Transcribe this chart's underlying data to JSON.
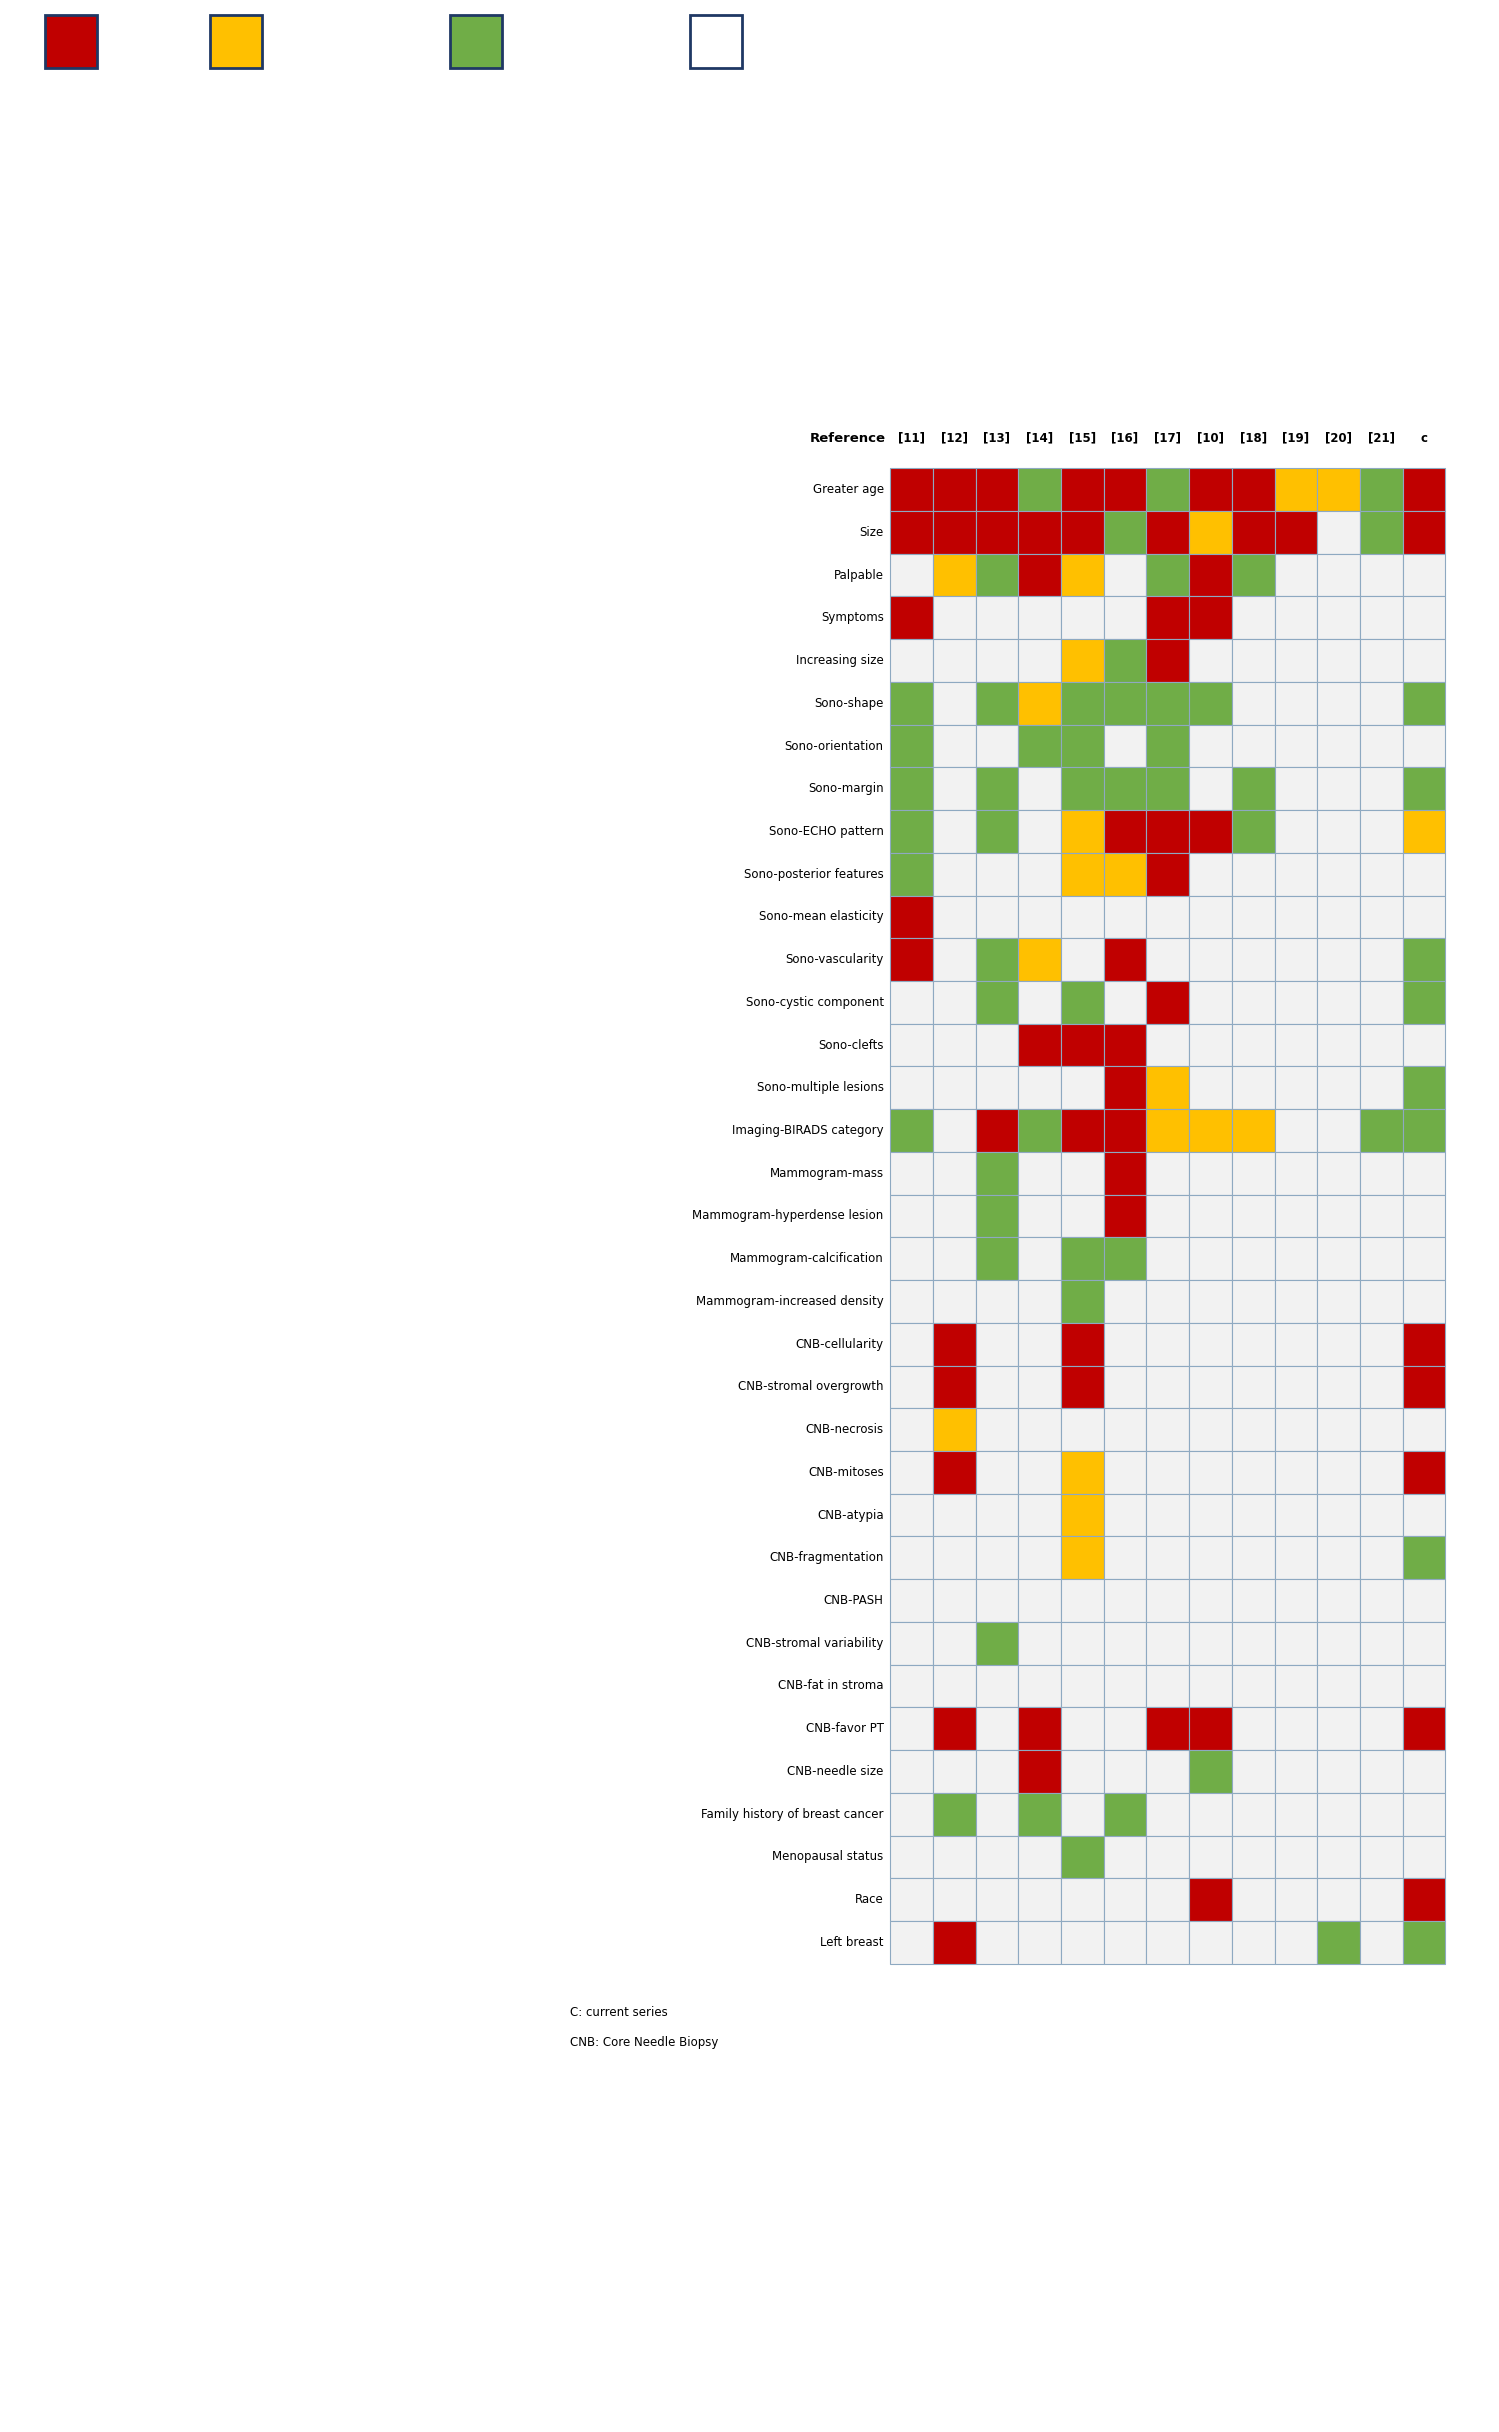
{
  "columns": [
    "[11]",
    "[12]",
    "[13]",
    "[14]",
    "[15]",
    "[16]",
    "[17]",
    "[10]",
    "[18]",
    "[19]",
    "[20]",
    "[21]",
    "c"
  ],
  "rows": [
    "Greater age",
    "Size",
    "Palpable",
    "Symptoms",
    "Increasing size",
    "Sono-shape",
    "Sono-orientation",
    "Sono-margin",
    "Sono-ECHO pattern",
    "Sono-posterior features",
    "Sono-mean elasticity",
    "Sono-vascularity",
    "Sono-cystic component",
    "Sono-clefts",
    "Sono-multiple lesions",
    "Imaging-BIRADS category",
    "Mammogram-mass",
    "Mammogram-hyperdense lesion",
    "Mammogram-calcification",
    "Mammogram-increased density",
    "CNB-cellularity",
    "CNB-stromal overgrowth",
    "CNB-necrosis",
    "CNB-mitoses",
    "CNB-atypia",
    "CNB-fragmentation",
    "CNB-PASH",
    "CNB-stromal variability",
    "CNB-fat in stroma",
    "CNB-favor PT",
    "CNB-needle size",
    "Family history of breast cancer",
    "Menopausal status",
    "Race",
    "Left breast"
  ],
  "grid": {
    "Greater age": [
      "R",
      "R",
      "R",
      "G",
      "R",
      "R",
      "G",
      "R",
      "R",
      "Y",
      "Y",
      "G",
      "R"
    ],
    "Size": [
      "R",
      "R",
      "R",
      "R",
      "R",
      "G",
      "R",
      "Y",
      "R",
      "R",
      "",
      "G",
      "R"
    ],
    "Palpable": [
      "",
      "Y",
      "G",
      "R",
      "Y",
      "",
      "G",
      "R",
      "G",
      "",
      "",
      "",
      ""
    ],
    "Symptoms": [
      "R",
      "",
      "",
      "",
      "",
      "",
      "R",
      "R",
      "",
      "",
      "",
      "",
      ""
    ],
    "Increasing size": [
      "",
      "",
      "",
      "",
      "Y",
      "G",
      "R",
      "",
      "",
      "",
      "",
      "",
      ""
    ],
    "Sono-shape": [
      "G",
      "",
      "G",
      "Y",
      "G",
      "G",
      "G",
      "G",
      "",
      "",
      "",
      "",
      "G"
    ],
    "Sono-orientation": [
      "G",
      "",
      "",
      "G",
      "G",
      "",
      "G",
      "",
      "",
      "",
      "",
      "",
      ""
    ],
    "Sono-margin": [
      "G",
      "",
      "G",
      "",
      "G",
      "G",
      "G",
      "",
      "G",
      "",
      "",
      "",
      "G"
    ],
    "Sono-ECHO pattern": [
      "G",
      "",
      "G",
      "",
      "Y",
      "R",
      "R",
      "R",
      "G",
      "",
      "",
      "",
      "Y"
    ],
    "Sono-posterior features": [
      "G",
      "",
      "",
      "",
      "Y",
      "Y",
      "R",
      "",
      "",
      "",
      "",
      "",
      ""
    ],
    "Sono-mean elasticity": [
      "R",
      "",
      "",
      "",
      "",
      "",
      "",
      "",
      "",
      "",
      "",
      "",
      ""
    ],
    "Sono-vascularity": [
      "R",
      "",
      "G",
      "Y",
      "",
      "R",
      "",
      "",
      "",
      "",
      "",
      "",
      "G"
    ],
    "Sono-cystic component": [
      "",
      "",
      "G",
      "",
      "G",
      "",
      "R",
      "",
      "",
      "",
      "",
      "",
      "G"
    ],
    "Sono-clefts": [
      "",
      "",
      "",
      "R",
      "R",
      "R",
      "",
      "",
      "",
      "",
      "",
      "",
      ""
    ],
    "Sono-multiple lesions": [
      "",
      "",
      "",
      "",
      "",
      "R",
      "Y",
      "",
      "",
      "",
      "",
      "",
      "G"
    ],
    "Imaging-BIRADS category": [
      "G",
      "",
      "R",
      "G",
      "R",
      "R",
      "Y",
      "Y",
      "Y",
      "",
      "",
      "G",
      "G"
    ],
    "Mammogram-mass": [
      "",
      "",
      "G",
      "",
      "",
      "R",
      "",
      "",
      "",
      "",
      "",
      "",
      ""
    ],
    "Mammogram-hyperdense lesion": [
      "",
      "",
      "G",
      "",
      "",
      "R",
      "",
      "",
      "",
      "",
      "",
      "",
      ""
    ],
    "Mammogram-calcification": [
      "",
      "",
      "G",
      "",
      "G",
      "G",
      "",
      "",
      "",
      "",
      "",
      "",
      ""
    ],
    "Mammogram-increased density": [
      "",
      "",
      "",
      "",
      "G",
      "",
      "",
      "",
      "",
      "",
      "",
      "",
      ""
    ],
    "CNB-cellularity": [
      "",
      "R",
      "",
      "",
      "R",
      "",
      "",
      "",
      "",
      "",
      "",
      "",
      "R"
    ],
    "CNB-stromal overgrowth": [
      "",
      "R",
      "",
      "",
      "R",
      "",
      "",
      "",
      "",
      "",
      "",
      "",
      "R"
    ],
    "CNB-necrosis": [
      "",
      "Y",
      "",
      "",
      "",
      "",
      "",
      "",
      "",
      "",
      "",
      "",
      ""
    ],
    "CNB-mitoses": [
      "",
      "R",
      "",
      "",
      "Y",
      "",
      "",
      "",
      "",
      "",
      "",
      "",
      "R"
    ],
    "CNB-atypia": [
      "",
      "",
      "",
      "",
      "Y",
      "",
      "",
      "",
      "",
      "",
      "",
      "",
      ""
    ],
    "CNB-fragmentation": [
      "",
      "",
      "",
      "",
      "Y",
      "",
      "",
      "",
      "",
      "",
      "",
      "",
      "G"
    ],
    "CNB-PASH": [
      "",
      "",
      "",
      "",
      "",
      "",
      "",
      "",
      "",
      "",
      "",
      "",
      ""
    ],
    "CNB-stromal variability": [
      "",
      "",
      "G",
      "",
      "",
      "",
      "",
      "",
      "",
      "",
      "",
      "",
      ""
    ],
    "CNB-fat in stroma": [
      "",
      "",
      "",
      "",
      "",
      "",
      "",
      "",
      "",
      "",
      "",
      "",
      ""
    ],
    "CNB-favor PT": [
      "",
      "R",
      "",
      "R",
      "",
      "",
      "R",
      "R",
      "",
      "",
      "",
      "",
      "R"
    ],
    "CNB-needle size": [
      "",
      "",
      "",
      "R",
      "",
      "",
      "",
      "G",
      "",
      "",
      "",
      "",
      ""
    ],
    "Family history of breast cancer": [
      "",
      "G",
      "",
      "G",
      "",
      "G",
      "",
      "",
      "",
      "",
      "",
      "",
      ""
    ],
    "Menopausal status": [
      "",
      "",
      "",
      "",
      "G",
      "",
      "",
      "",
      "",
      "",
      "",
      "",
      ""
    ],
    "Race": [
      "",
      "",
      "",
      "",
      "",
      "",
      "",
      "R",
      "",
      "",
      "",
      "",
      "R"
    ],
    "Left breast": [
      "",
      "R",
      "",
      "",
      "",
      "",
      "",
      "",
      "",
      "",
      "G",
      "",
      "G"
    ]
  },
  "color_map": {
    "R": "#C00000",
    "G": "#70AD47",
    "Y": "#FFC000",
    "": "#F2F2F2"
  },
  "border_color": "#8EA9C1",
  "background_color": "#FFFFFF",
  "legend_colors": [
    "#C00000",
    "#FFC000",
    "#70AD47",
    "#FFFFFF"
  ],
  "legend_border": "#1F3864",
  "footnote1": "C: current series",
  "footnote2": "CNB: Core Needle Biopsy"
}
